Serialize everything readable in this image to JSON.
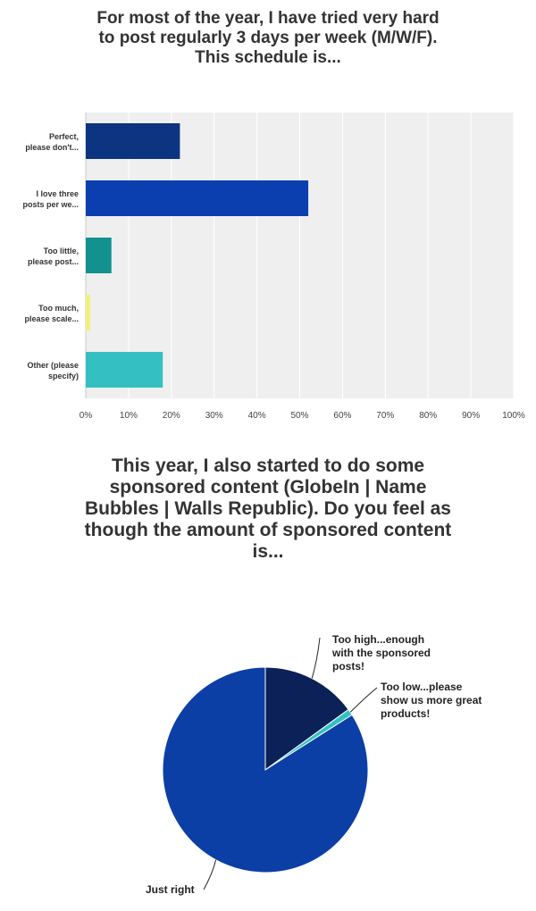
{
  "chart_data": [
    {
      "type": "bar",
      "orientation": "horizontal",
      "title_lines": [
        "For most of the year, I have tried very hard",
        "to post regularly 3 days per week (M/W/F).",
        "This schedule is..."
      ],
      "categories": [
        [
          "Perfect,",
          "please don't..."
        ],
        [
          "I love three",
          "posts per we..."
        ],
        [
          "Too little,",
          "please post..."
        ],
        [
          "Too much,",
          "please scale..."
        ],
        [
          "Other (please",
          "specify)"
        ]
      ],
      "values": [
        22,
        52,
        6,
        1,
        18
      ],
      "colors": [
        "#0d3480",
        "#0b3fb0",
        "#12918e",
        "#f2f078",
        "#34c0c3"
      ],
      "xlim": [
        0,
        100
      ],
      "xticks": [
        "0%",
        "10%",
        "20%",
        "30%",
        "40%",
        "50%",
        "60%",
        "70%",
        "80%",
        "90%",
        "100%"
      ],
      "xlabel": "",
      "ylabel": ""
    },
    {
      "type": "pie",
      "title_lines": [
        "This year, I also started to do some",
        "sponsored content (GlobeIn | Name",
        "Bubbles | Walls Republic). Do you feel as",
        "though the amount of sponsored content",
        "is..."
      ],
      "slices": [
        {
          "label_lines": [
            "Too high...enough",
            "with the sponsored",
            "posts!"
          ],
          "value": 15,
          "color": "#0b2157"
        },
        {
          "label_lines": [
            "Too low...please",
            "show us more great",
            "products!"
          ],
          "value": 1,
          "color": "#34c0c3"
        },
        {
          "label_lines": [
            "Just right"
          ],
          "value": 84,
          "color": "#0b3fa6"
        }
      ]
    }
  ]
}
